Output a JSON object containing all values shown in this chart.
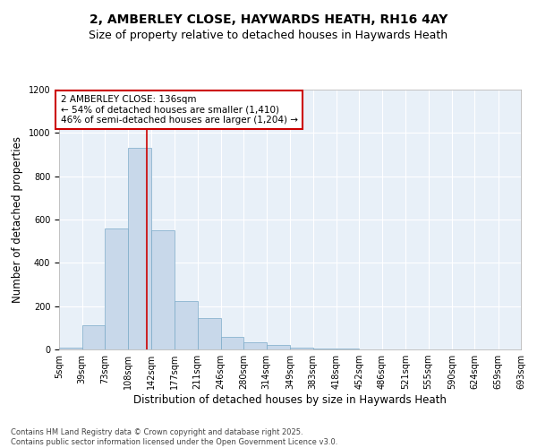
{
  "title": "2, AMBERLEY CLOSE, HAYWARDS HEATH, RH16 4AY",
  "subtitle": "Size of property relative to detached houses in Haywards Heath",
  "xlabel": "Distribution of detached houses by size in Haywards Heath",
  "ylabel": "Number of detached properties",
  "bar_color": "#c8d8ea",
  "bar_edge_color": "#7aaac8",
  "background_color": "#e8f0f8",
  "fig_background_color": "#ffffff",
  "grid_color": "#ffffff",
  "bins": [
    5,
    39,
    73,
    108,
    142,
    177,
    211,
    246,
    280,
    314,
    349,
    383,
    418,
    452,
    486,
    521,
    555,
    590,
    624,
    659,
    693
  ],
  "bin_labels": [
    "5sqm",
    "39sqm",
    "73sqm",
    "108sqm",
    "142sqm",
    "177sqm",
    "211sqm",
    "246sqm",
    "280sqm",
    "314sqm",
    "349sqm",
    "383sqm",
    "418sqm",
    "452sqm",
    "486sqm",
    "521sqm",
    "555sqm",
    "590sqm",
    "624sqm",
    "659sqm",
    "693sqm"
  ],
  "counts": [
    10,
    110,
    560,
    930,
    550,
    225,
    145,
    57,
    32,
    20,
    10,
    5,
    3,
    2,
    1,
    1,
    0,
    0,
    0,
    0
  ],
  "red_line_x": 136,
  "annotation_text": "2 AMBERLEY CLOSE: 136sqm\n← 54% of detached houses are smaller (1,410)\n46% of semi-detached houses are larger (1,204) →",
  "annotation_box_color": "#ffffff",
  "annotation_box_edge": "#cc0000",
  "red_line_color": "#cc0000",
  "ylim": [
    0,
    1200
  ],
  "yticks": [
    0,
    200,
    400,
    600,
    800,
    1000,
    1200
  ],
  "footer": "Contains HM Land Registry data © Crown copyright and database right 2025.\nContains public sector information licensed under the Open Government Licence v3.0.",
  "title_fontsize": 10,
  "subtitle_fontsize": 9,
  "xlabel_fontsize": 8.5,
  "ylabel_fontsize": 8.5,
  "tick_fontsize": 7,
  "annotation_fontsize": 7.5,
  "footer_fontsize": 6
}
